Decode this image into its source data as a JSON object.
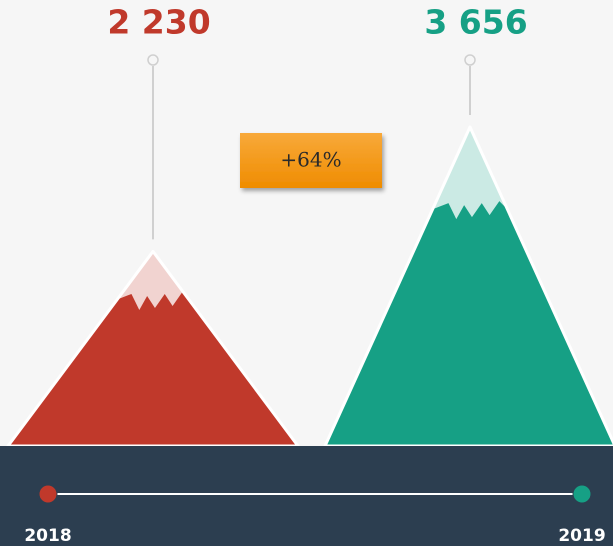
{
  "chart_data": {
    "type": "mountain",
    "categories": [
      "2018",
      "2019"
    ],
    "values": [
      2230,
      3656
    ],
    "value_labels": [
      "2 230",
      "3 656"
    ],
    "colors": [
      "#c0392b",
      "#16a085"
    ],
    "annotation": "+64%"
  }
}
